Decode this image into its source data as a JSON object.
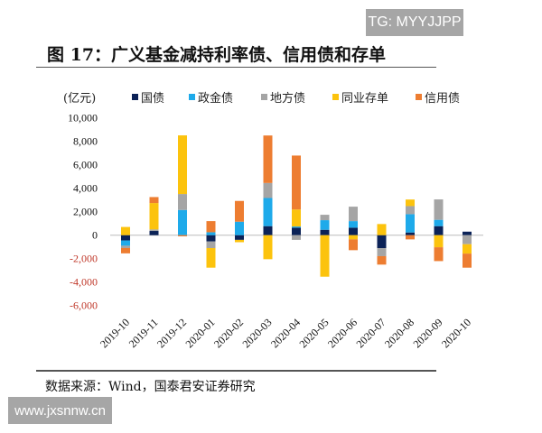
{
  "watermark_top": "TG: MYYJJPP",
  "watermark_bottom": "www.jxsnnw.cn",
  "title": "图 17：广义基金减持利率债、信用债和存单",
  "source": "数据来源：Wind，国泰君安证券研究",
  "chart_data": {
    "type": "bar",
    "stacked": true,
    "unit_label": "(亿元)",
    "categories": [
      "2019-10",
      "2019-11",
      "2019-12",
      "2020-01",
      "2020-02",
      "2020-03",
      "2020-04",
      "2020-05",
      "2020-06",
      "2020-07",
      "2020-08",
      "2020-09",
      "2020-10"
    ],
    "series": [
      {
        "name": "国债",
        "color": "#0b2257",
        "values": [
          -450,
          360,
          0,
          -540,
          -400,
          770,
          640,
          460,
          640,
          -1100,
          230,
          770,
          300
        ]
      },
      {
        "name": "政金债",
        "color": "#1eaaea",
        "values": [
          -450,
          0,
          2150,
          250,
          1150,
          2400,
          100,
          820,
          560,
          0,
          1560,
          540,
          0
        ]
      },
      {
        "name": "地方债",
        "color": "#a5a5a5",
        "values": [
          -200,
          130,
          1360,
          -560,
          0,
          1280,
          -400,
          460,
          1230,
          -690,
          690,
          1740,
          -770
        ]
      },
      {
        "name": "同业存单",
        "color": "#fcc30d",
        "values": [
          700,
          2250,
          5000,
          -1670,
          -200,
          -2050,
          1450,
          -3540,
          -360,
          950,
          560,
          -1030,
          -800
        ]
      },
      {
        "name": "信用债",
        "color": "#ed7d31",
        "values": [
          -450,
          510,
          -100,
          950,
          1770,
          4050,
          4600,
          0,
          -920,
          -720,
          -360,
          -1180,
          -1200
        ]
      }
    ],
    "ylim": [
      -6000,
      10000
    ],
    "yticks": [
      "10,000",
      "8,000",
      "6,000",
      "4,000",
      "2,000",
      "0",
      "-2,000",
      "-4,000",
      "-6,000"
    ],
    "ytick_values": [
      10000,
      8000,
      6000,
      4000,
      2000,
      0,
      -2000,
      -4000,
      -6000
    ],
    "negative_tick_color": "#c0392b",
    "legend_position": "top",
    "grid": false
  }
}
